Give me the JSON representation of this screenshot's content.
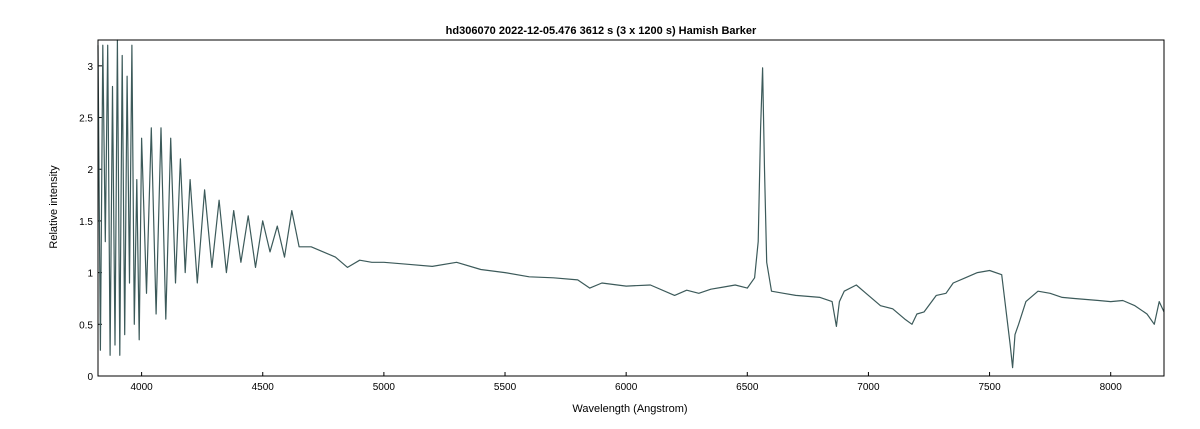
{
  "chart_data": {
    "type": "line",
    "title": "hd306070  2022-12-05.476  3612 s (3 x 1200 s)  Hamish Barker",
    "xlabel": "Wavelength (Angstrom)",
    "ylabel": "Relative intensity",
    "xlim": [
      3820,
      8220
    ],
    "ylim": [
      0,
      3.25
    ],
    "xticks": [
      "4000",
      "4500",
      "5000",
      "5500",
      "6000",
      "6500",
      "7000",
      "7500",
      "8000"
    ],
    "yticks": [
      "0",
      "0.5",
      "1",
      "1.5",
      "2",
      "2.5",
      "3"
    ],
    "grid": false,
    "line_color": "#3c5a5a",
    "series": [
      {
        "x": [
          3820,
          3830,
          3840,
          3850,
          3860,
          3870,
          3880,
          3890,
          3900,
          3910,
          3920,
          3930,
          3940,
          3950,
          3960,
          3970,
          3980,
          3990,
          4000,
          4020,
          4040,
          4060,
          4080,
          4100,
          4120,
          4140,
          4160,
          4180,
          4200,
          4230,
          4260,
          4290,
          4320,
          4350,
          4380,
          4410,
          4440,
          4470,
          4500,
          4530,
          4560,
          4590,
          4620,
          4650,
          4700,
          4750,
          4800,
          4850,
          4900,
          4950,
          5000,
          5100,
          5200,
          5300,
          5400,
          5500,
          5600,
          5700,
          5800,
          5850,
          5900,
          6000,
          6100,
          6200,
          6250,
          6300,
          6350,
          6400,
          6450,
          6500,
          6530,
          6545,
          6555,
          6563,
          6571,
          6580,
          6600,
          6650,
          6700,
          6750,
          6800,
          6850,
          6868,
          6880,
          6900,
          6950,
          6990,
          7050,
          7100,
          7150,
          7180,
          7200,
          7230,
          7280,
          7320,
          7350,
          7400,
          7450,
          7500,
          7550,
          7585,
          7595,
          7605,
          7620,
          7650,
          7700,
          7750,
          7800,
          7850,
          7900,
          7950,
          8000,
          8050,
          8100,
          8150,
          8180,
          8200,
          8220
        ],
        "y": [
          3.2,
          0.25,
          3.2,
          1.3,
          3.2,
          0.2,
          2.8,
          0.3,
          3.25,
          0.2,
          3.1,
          0.4,
          2.9,
          0.9,
          3.2,
          0.5,
          1.9,
          0.35,
          2.3,
          0.8,
          2.4,
          0.6,
          2.4,
          0.55,
          2.3,
          0.9,
          2.1,
          1.0,
          1.9,
          0.9,
          1.8,
          1.05,
          1.7,
          1.0,
          1.6,
          1.1,
          1.55,
          1.05,
          1.5,
          1.2,
          1.45,
          1.15,
          1.6,
          1.25,
          1.25,
          1.2,
          1.15,
          1.05,
          1.12,
          1.1,
          1.1,
          1.08,
          1.06,
          1.1,
          1.03,
          1.0,
          0.96,
          0.95,
          0.93,
          0.85,
          0.9,
          0.87,
          0.88,
          0.78,
          0.83,
          0.8,
          0.84,
          0.86,
          0.88,
          0.85,
          0.95,
          1.3,
          2.4,
          2.98,
          2.0,
          1.1,
          0.82,
          0.8,
          0.78,
          0.77,
          0.76,
          0.72,
          0.48,
          0.72,
          0.82,
          0.88,
          0.8,
          0.68,
          0.65,
          0.55,
          0.5,
          0.6,
          0.62,
          0.78,
          0.8,
          0.9,
          0.95,
          1.0,
          1.02,
          0.98,
          0.3,
          0.08,
          0.4,
          0.5,
          0.72,
          0.82,
          0.8,
          0.76,
          0.75,
          0.74,
          0.73,
          0.72,
          0.73,
          0.68,
          0.6,
          0.5,
          0.72,
          0.62
        ]
      }
    ]
  }
}
